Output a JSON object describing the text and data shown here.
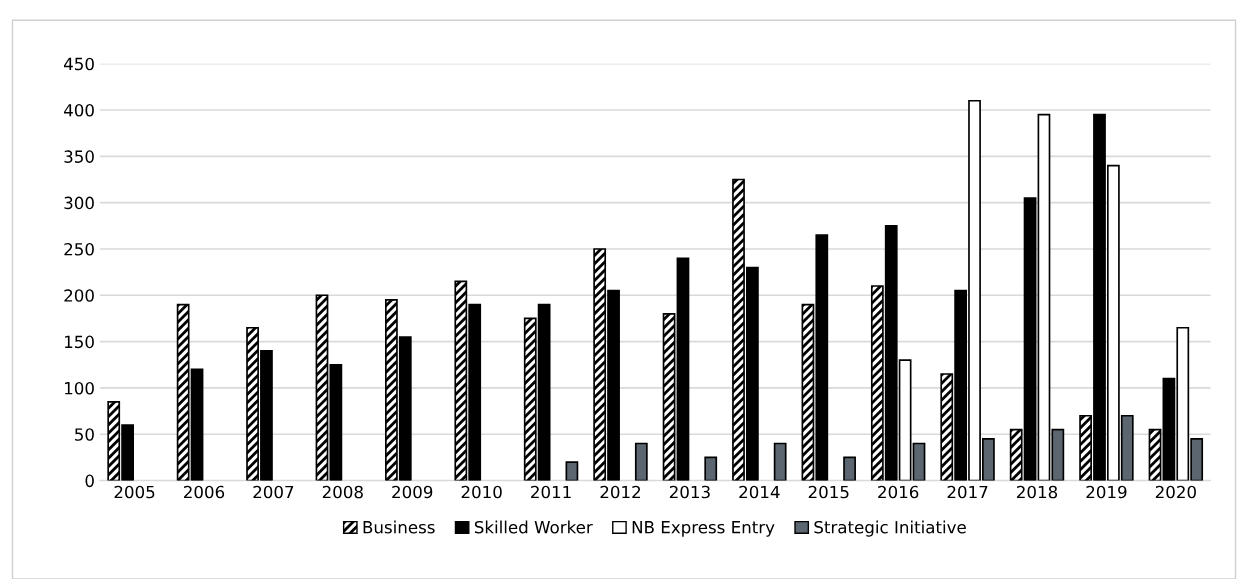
{
  "chart_data": {
    "type": "bar",
    "categories": [
      "2005",
      "2006",
      "2007",
      "2008",
      "2009",
      "2010",
      "2011",
      "2012",
      "2013",
      "2014",
      "2015",
      "2016",
      "2017",
      "2018",
      "2019",
      "2020"
    ],
    "series": [
      {
        "name": "Business",
        "color": "#000000",
        "values": [
          85,
          190,
          165,
          200,
          195,
          215,
          175,
          250,
          180,
          325,
          190,
          210,
          115,
          55,
          70,
          55
        ]
      },
      {
        "name": "Skilled Worker",
        "color": "#000000",
        "values": [
          60,
          120,
          140,
          125,
          155,
          190,
          190,
          205,
          240,
          230,
          265,
          275,
          205,
          305,
          395,
          110
        ]
      },
      {
        "name": "NB Express Entry",
        "color": "#ffffff",
        "values": [
          null,
          null,
          null,
          null,
          null,
          null,
          null,
          null,
          null,
          null,
          null,
          130,
          410,
          395,
          340,
          165
        ]
      },
      {
        "name": "Strategic Initiative",
        "color": "#5b6670",
        "values": [
          null,
          null,
          null,
          null,
          null,
          null,
          20,
          40,
          25,
          40,
          25,
          40,
          45,
          55,
          70,
          45
        ]
      }
    ],
    "ylim": [
      0,
      450
    ],
    "yticks": [
      0,
      50,
      100,
      150,
      200,
      250,
      300,
      350,
      400,
      450
    ],
    "grid": "y",
    "legend": "bottom"
  }
}
